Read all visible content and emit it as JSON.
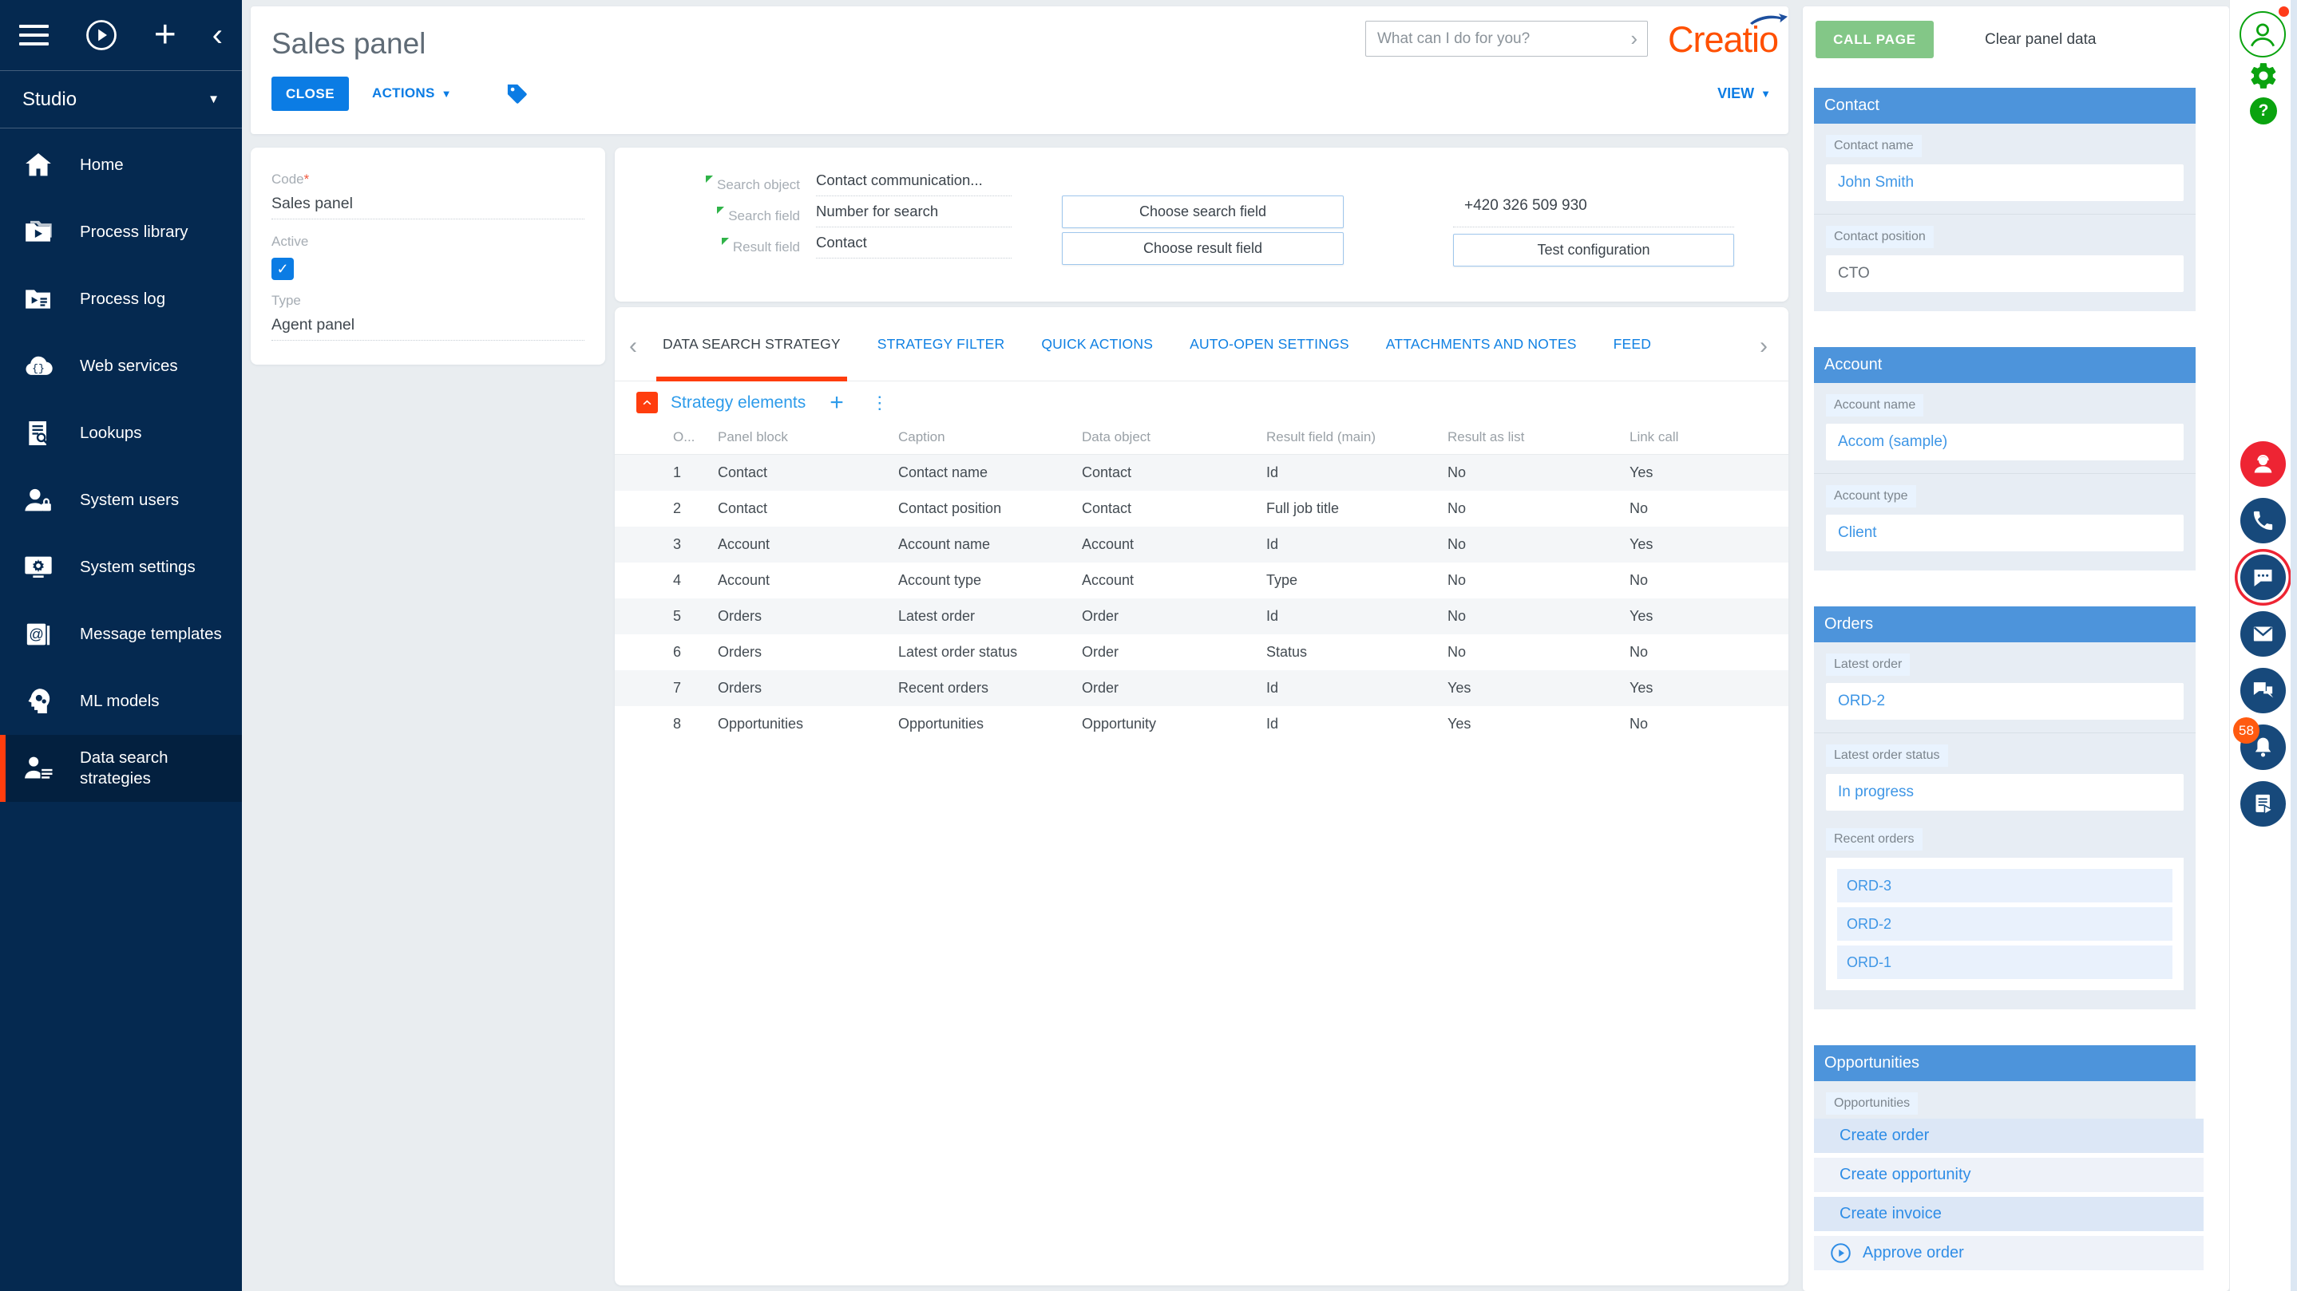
{
  "app": {
    "logo_text": "Creatio",
    "assistant_placeholder": "What can I do for you?"
  },
  "sidebar": {
    "workspace": "Studio",
    "items": [
      {
        "label": "Home",
        "icon": "home-icon"
      },
      {
        "label": "Process library",
        "icon": "process-library-icon"
      },
      {
        "label": "Process log",
        "icon": "process-log-icon"
      },
      {
        "label": "Web services",
        "icon": "web-services-icon"
      },
      {
        "label": "Lookups",
        "icon": "lookups-icon"
      },
      {
        "label": "System users",
        "icon": "system-users-icon"
      },
      {
        "label": "System settings",
        "icon": "system-settings-icon"
      },
      {
        "label": "Message templates",
        "icon": "message-templates-icon"
      },
      {
        "label": "ML models",
        "icon": "ml-models-icon"
      },
      {
        "label": "Data search strategies",
        "icon": "data-search-icon",
        "active": true
      }
    ]
  },
  "page_header": {
    "title": "Sales panel",
    "close": "CLOSE",
    "actions": "ACTIONS",
    "view": "VIEW"
  },
  "record_form": {
    "code_label": "Code",
    "required_mark": "*",
    "code_value": "Sales panel",
    "active_label": "Active",
    "active_checked": true,
    "type_label": "Type",
    "type_value": "Agent panel"
  },
  "search_config": {
    "fields": [
      {
        "label": "Search object",
        "value": "Contact communication..."
      },
      {
        "label": "Search field",
        "value": "Number for search"
      },
      {
        "label": "Result field",
        "value": "Contact"
      }
    ],
    "choose_search": "Choose search field",
    "choose_result": "Choose result field",
    "phone": "+420 326 509 930",
    "test_button": "Test configuration"
  },
  "tabs": [
    {
      "label": "DATA SEARCH STRATEGY",
      "active": true
    },
    {
      "label": "STRATEGY FILTER"
    },
    {
      "label": "QUICK ACTIONS"
    },
    {
      "label": "AUTO-OPEN SETTINGS"
    },
    {
      "label": "ATTACHMENTS AND NOTES"
    },
    {
      "label": "FEED"
    }
  ],
  "strategy": {
    "title": "Strategy elements",
    "table": {
      "columns": [
        "O...",
        "Panel block",
        "Caption",
        "Data object",
        "Result field (main)",
        "Result as list",
        "Link call"
      ],
      "rows": [
        [
          "1",
          "Contact",
          "Contact name",
          "Contact",
          "Id",
          "No",
          "Yes"
        ],
        [
          "2",
          "Contact",
          "Contact position",
          "Contact",
          "Full job title",
          "No",
          "No"
        ],
        [
          "3",
          "Account",
          "Account name",
          "Account",
          "Id",
          "No",
          "Yes"
        ],
        [
          "4",
          "Account",
          "Account type",
          "Account",
          "Type",
          "No",
          "No"
        ],
        [
          "5",
          "Orders",
          "Latest order",
          "Order",
          "Id",
          "No",
          "Yes"
        ],
        [
          "6",
          "Orders",
          "Latest order status",
          "Order",
          "Status",
          "No",
          "No"
        ],
        [
          "7",
          "Orders",
          "Recent orders",
          "Order",
          "Id",
          "Yes",
          "Yes"
        ],
        [
          "8",
          "Opportunities",
          "Opportunities",
          "Opportunity",
          "Id",
          "Yes",
          "No"
        ]
      ]
    }
  },
  "call_panel": {
    "call_page": "CALL PAGE",
    "clear": "Clear panel data",
    "sections": [
      {
        "title": "Contact",
        "fields": [
          {
            "label": "Contact name",
            "value": "John Smith",
            "variant": "link"
          },
          {
            "label": "Contact position",
            "value": "CTO"
          }
        ]
      },
      {
        "title": "Account",
        "fields": [
          {
            "label": "Account name",
            "value": "Accom (sample)",
            "variant": "link"
          },
          {
            "label": "Account type",
            "value": "Client",
            "variant": "link"
          }
        ]
      },
      {
        "title": "Orders",
        "variant": "has-list",
        "fields": [
          {
            "label": "Latest order",
            "value": "ORD-2",
            "variant": "link"
          },
          {
            "label": "Latest order status",
            "value": "In progress",
            "variant": "link"
          }
        ],
        "list": {
          "label": "Recent orders",
          "items": [
            "ORD-3",
            "ORD-2",
            "ORD-1"
          ]
        }
      },
      {
        "title": "Opportunities",
        "variant": "partial",
        "fields": [
          {
            "label": "Opportunities",
            "value": ""
          }
        ]
      }
    ],
    "action_buttons": [
      {
        "label": "Create order"
      },
      {
        "label": "Create opportunity",
        "variant": "alt"
      },
      {
        "label": "Create invoice"
      },
      {
        "label": "Approve order",
        "variant": "approve"
      }
    ]
  },
  "rail": {
    "icons": [
      {
        "name": "agent-icon",
        "variant": "red"
      },
      {
        "name": "call-icon"
      },
      {
        "name": "chat-icon",
        "variant": "ringed"
      },
      {
        "name": "email-icon"
      },
      {
        "name": "messages-icon"
      },
      {
        "name": "notifications-icon",
        "badge": "58"
      },
      {
        "name": "process-tasks-icon"
      }
    ]
  },
  "colors": {
    "sidebar_navy": "#052950",
    "accent_orange": "#ff3d0e",
    "primary_blue": "#0b7ce4",
    "section_header_blue": "#4d94db",
    "call_page_green": "#83c787",
    "notification_badge": "#ff5a10",
    "logo_orange": "#ff5000"
  }
}
